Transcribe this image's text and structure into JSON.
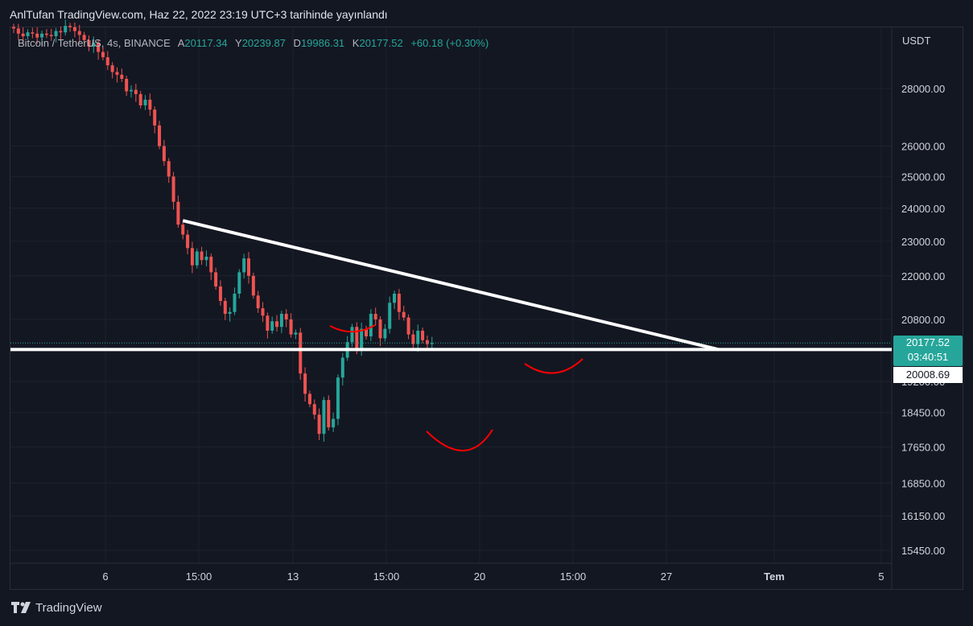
{
  "header": {
    "published_text": "AnlTufan TradingView.com, Haz 22, 2022 23:19 UTC+3 tarihinde yayınlandı"
  },
  "legend": {
    "symbol": "Bitcoin / TetherUS, 4s, BINANCE",
    "open_label": "A",
    "open": "20117.34",
    "high_label": "Y",
    "high": "20239.87",
    "low_label": "D",
    "low": "19986.31",
    "close_label": "K",
    "close": "20177.52",
    "change": "+60.18 (+0.30%)"
  },
  "axis": {
    "currency": "USDT"
  },
  "price_tags": {
    "last_price": "20177.52",
    "countdown": "03:40:51",
    "line_price": "20008.69"
  },
  "brand": {
    "name": "TradingView",
    "icon": "tradingview-logo-icon"
  },
  "colors": {
    "up": "#26a69a",
    "down": "#ef5350",
    "background": "#131722",
    "grid": "#1e222d",
    "annotation": "#ff0000",
    "trendline": "#ffffff"
  },
  "chart_data": {
    "type": "candlestick",
    "y_scale": "log",
    "y_ticks": [
      "28000.00",
      "26000.00",
      "25000.00",
      "24000.00",
      "23000.00",
      "22000.00",
      "20800.00",
      "19200.00",
      "18450.00",
      "17650.00",
      "16850.00",
      "16150.00",
      "15450.00"
    ],
    "x_ticks": [
      "6",
      "15:00",
      "13",
      "15:00",
      "20",
      "15:00",
      "27",
      "Tem",
      "5"
    ],
    "candles_close": [
      30250,
      30050,
      29950,
      30100,
      30050,
      29900,
      30050,
      30000,
      29950,
      30150,
      30100,
      30350,
      30300,
      30150,
      30000,
      29800,
      29550,
      29700,
      29350,
      29150,
      28850,
      28600,
      28500,
      28350,
      27900,
      27950,
      27800,
      27400,
      27600,
      27250,
      26700,
      26000,
      25500,
      25000,
      24200,
      23500,
      23200,
      22800,
      22300,
      22700,
      22450,
      22550,
      22100,
      21700,
      21300,
      20950,
      21000,
      21500,
      22100,
      22500,
      22000,
      21450,
      21100,
      20900,
      20500,
      20750,
      20600,
      20950,
      20800,
      20400,
      20450,
      19400,
      18900,
      18650,
      18400,
      17950,
      18750,
      18100,
      18300,
      19300,
      19800,
      20200,
      20600,
      20050,
      20550,
      20350,
      20950,
      20800,
      20300,
      20550,
      21250,
      21500,
      21000,
      20850,
      20400,
      20150,
      20500,
      20250,
      20150,
      20177.52
    ],
    "horizontal_line": 20008.69,
    "trendline": {
      "from": {
        "x": 36,
        "y": 23620
      },
      "to": {
        "x": 150,
        "y": 20008.69
      }
    }
  }
}
